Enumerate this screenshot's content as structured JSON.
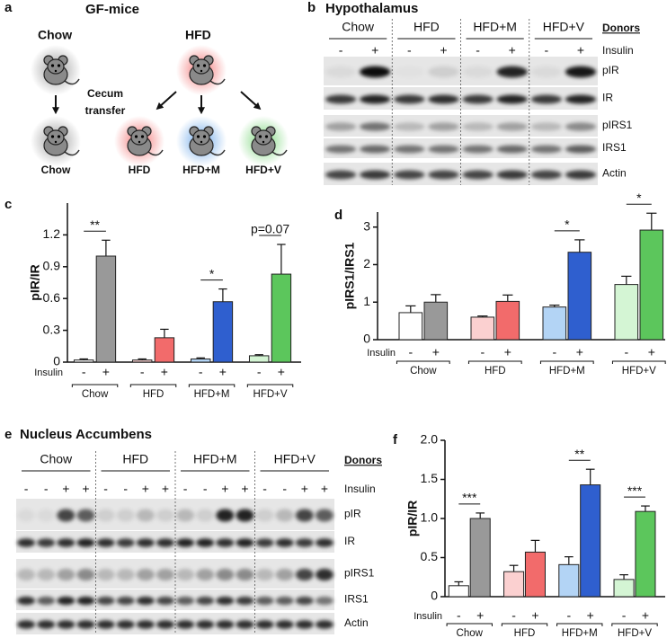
{
  "panel_a": {
    "letter": "a",
    "title": "GF-mice",
    "donor_labels": [
      "Chow",
      "HFD"
    ],
    "transfer_label": [
      "Cecum",
      "transfer"
    ],
    "recipient_labels": [
      "Chow",
      "HFD",
      "HFD+M",
      "HFD+V"
    ]
  },
  "panel_b": {
    "letter": "b",
    "title": "Hypothalamus",
    "groups": [
      "Chow",
      "HFD",
      "HFD+M",
      "HFD+V"
    ],
    "donors_label": "Donors",
    "insulin_label": "Insulin",
    "insulin_lanes": [
      "-",
      "+",
      "-",
      "+",
      "-",
      "+",
      "-",
      "+"
    ],
    "rows": [
      "pIR",
      "IR",
      "pIRS1",
      "IRS1",
      "Actin"
    ]
  },
  "panel_e": {
    "letter": "e",
    "title": "Nucleus Accumbens",
    "groups": [
      "Chow",
      "HFD",
      "HFD+M",
      "HFD+V"
    ],
    "donors_label": "Donors",
    "insulin_label": "Insulin",
    "insulin_lanes": [
      "-",
      "-",
      "+",
      "+",
      "-",
      "-",
      "+",
      "+",
      "-",
      "-",
      "+",
      "+",
      "-",
      "-",
      "+",
      "+"
    ],
    "rows": [
      "pIR",
      "IR",
      "pIRS1",
      "IRS1",
      "Actin"
    ]
  },
  "chart_data": [
    {
      "type": "bar",
      "panel": "c",
      "y_label": "pIR/IR",
      "insulin_label": "Insulin",
      "categories": [
        "Chow",
        "HFD",
        "HFD+M",
        "HFD+V"
      ],
      "series": [
        {
          "name": "-",
          "colors": [
            "#ffffff",
            "#fbd0d0",
            "#b3d4f5",
            "#d4f5d4"
          ],
          "values": [
            0.02,
            0.02,
            0.03,
            0.06
          ],
          "errors": [
            0.01,
            0.01,
            0.01,
            0.01
          ]
        },
        {
          "name": "+",
          "colors": [
            "#999999",
            "#f26b6b",
            "#2f5fcf",
            "#5cc65c"
          ],
          "values": [
            1.0,
            0.23,
            0.57,
            0.83
          ],
          "errors": [
            0.15,
            0.08,
            0.12,
            0.28
          ]
        }
      ],
      "annotations": [
        "**",
        null,
        "*",
        "p=0.07"
      ],
      "ylim": [
        0,
        1.5
      ],
      "yticks": [
        0,
        0.3,
        0.6,
        0.9,
        1.2
      ]
    },
    {
      "type": "bar",
      "panel": "d",
      "y_label": "pIRS1/IRS1",
      "insulin_label": "Insulin",
      "categories": [
        "Chow",
        "HFD",
        "HFD+M",
        "HFD+V"
      ],
      "series": [
        {
          "name": "-",
          "colors": [
            "#ffffff",
            "#fbd0d0",
            "#b3d4f5",
            "#d4f5d4"
          ],
          "values": [
            0.72,
            0.6,
            0.87,
            1.47
          ],
          "errors": [
            0.18,
            0.03,
            0.05,
            0.22
          ]
        },
        {
          "name": "+",
          "colors": [
            "#999999",
            "#f26b6b",
            "#2f5fcf",
            "#5cc65c"
          ],
          "values": [
            1.0,
            1.02,
            2.33,
            2.92
          ],
          "errors": [
            0.2,
            0.17,
            0.33,
            0.45
          ]
        }
      ],
      "annotations": [
        null,
        null,
        "*",
        "*"
      ],
      "ylim": [
        0,
        3.4
      ],
      "yticks": [
        0,
        1,
        2,
        3
      ]
    },
    {
      "type": "bar",
      "panel": "f",
      "y_label": "pIR/IR",
      "insulin_label": "Insulin",
      "categories": [
        "Chow",
        "HFD",
        "HFD+M",
        "HFD+V"
      ],
      "series": [
        {
          "name": "-",
          "colors": [
            "#ffffff",
            "#fbd0d0",
            "#b3d4f5",
            "#d4f5d4"
          ],
          "values": [
            0.14,
            0.32,
            0.41,
            0.22
          ],
          "errors": [
            0.05,
            0.08,
            0.1,
            0.06
          ]
        },
        {
          "name": "+",
          "colors": [
            "#999999",
            "#f26b6b",
            "#2f5fcf",
            "#5cc65c"
          ],
          "values": [
            1.0,
            0.57,
            1.43,
            1.09
          ],
          "errors": [
            0.07,
            0.15,
            0.2,
            0.07
          ]
        }
      ],
      "annotations": [
        "***",
        null,
        "**",
        "***"
      ],
      "ylim": [
        0,
        2
      ],
      "yticks": [
        0,
        0.5,
        {
          "value": 1,
          "label": "1.0"
        },
        1.5,
        {
          "value": 2,
          "label": "2.0"
        }
      ]
    }
  ]
}
